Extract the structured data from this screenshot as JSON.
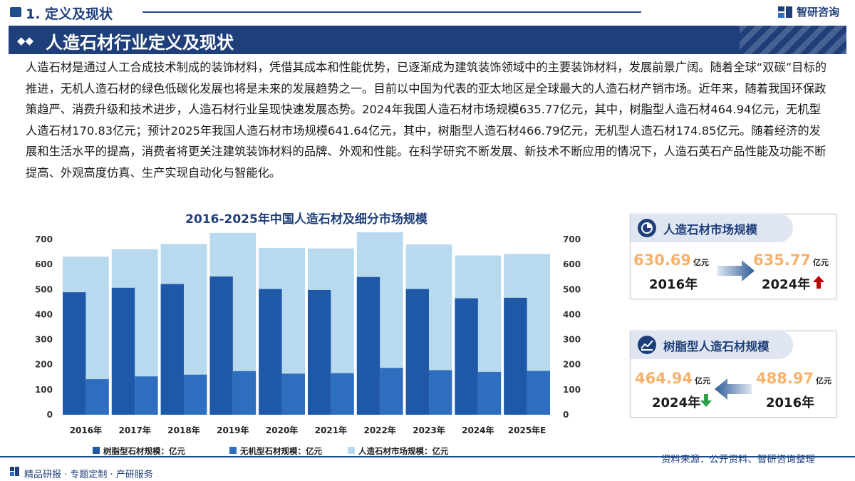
{
  "header": {
    "section_title": "1. 定义及现状",
    "brand": "智研咨询",
    "banner_title": "人造石材行业定义及现状"
  },
  "paragraph": "人造石材是通过人工合成技术制成的装饰材料，凭借其成本和性能优势，已逐渐成为建筑装饰领域中的主要装饰材料，发展前景广阔。随着全球“双碳”目标的推进，无机人造石材的绿色低碳化发展也将是未来的发展趋势之一。目前以中国为代表的亚太地区是全球最大的人造石材产销市场。近年来，随着我国环保政策趋严、消费升级和技术进步，人造石材行业呈现快速发展态势。2024年我国人造石材市场规模635.77亿元，其中，树脂型人造石材464.94亿元，无机型人造石材170.83亿元；预计2025年我国人造石材市场规模641.64亿元，其中，树脂型人造石材466.79亿元，无机型人造石材174.85亿元。随着经济的发展和生活水平的提高，消费者将更关注建筑装饰材料的品牌、外观和性能。在科学研究不断发展、新技术不断应用的情况下，人造石英石产品性能及功能不断提高、外观高度仿真、生产实现自动化与智能化。",
  "chart_data": {
    "type": "bar",
    "title": "2016-2025年中国人造石材及细分市场规模",
    "categories": [
      "2016年",
      "2017年",
      "2018年",
      "2019年",
      "2020年",
      "2021年",
      "2022年",
      "2023年",
      "2024年",
      "2025年E"
    ],
    "series": [
      {
        "name": "树脂型石材规模：亿元",
        "color": "#1f58a6",
        "values": [
          489,
          507,
          522,
          552,
          502,
          498,
          550,
          502,
          465,
          467
        ]
      },
      {
        "name": "无机型石材规模：亿元",
        "color": "#2f6dbf",
        "values": [
          142,
          153,
          160,
          174,
          164,
          166,
          187,
          178,
          171,
          175
        ]
      },
      {
        "name": "人造石材市场规模：亿元",
        "color": "#b9d9ef",
        "values": [
          631,
          661,
          682,
          726,
          666,
          664,
          737,
          680,
          636,
          642
        ]
      }
    ],
    "ylim": [
      0,
      700
    ],
    "yticks": [
      0,
      100,
      200,
      300,
      400,
      500,
      600,
      700
    ],
    "legend_position": "bottom"
  },
  "card_market": {
    "title": "人造石材市场规模",
    "left_value": "630.69",
    "left_unit": "亿元",
    "left_year": "2016年",
    "right_value": "635.77",
    "right_unit": "亿元",
    "right_year": "2024年",
    "trend": "up",
    "trend_color": "#c00000"
  },
  "card_resin": {
    "title": "树脂型人造石材规模",
    "left_value": "464.94",
    "left_unit": "亿元",
    "left_year": "2024年",
    "right_value": "488.97",
    "right_unit": "亿元",
    "right_year": "2016年",
    "trend": "down",
    "trend_color": "#2aa14a"
  },
  "footer": {
    "left": "精品研报 · 专题定制 · 产研服务",
    "source": "资料来源：公开资料、智研咨询整理"
  },
  "colors": {
    "primary": "#1f3f7a",
    "accent_value": "#f6b26b"
  }
}
